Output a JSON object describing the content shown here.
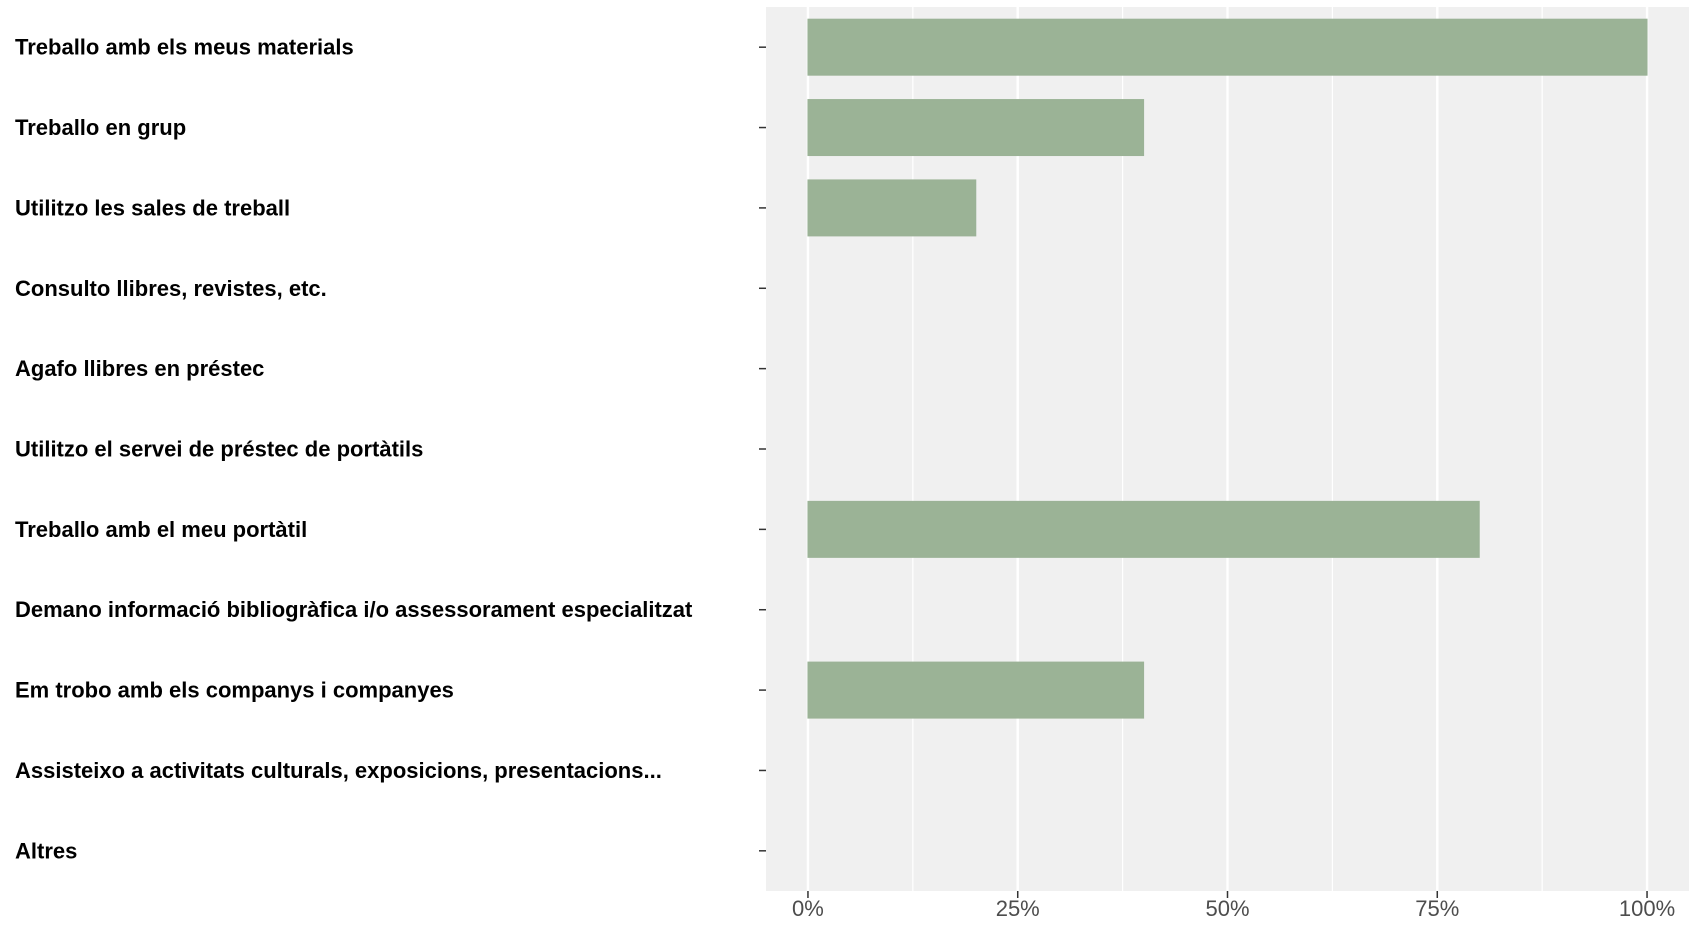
{
  "chart_data": {
    "type": "bar",
    "orientation": "horizontal",
    "categories": [
      "Treballo amb els meus materials",
      "Treballo en grup",
      "Utilitzo les sales de treball",
      "Consulto llibres, revistes, etc.",
      "Agafo llibres en préstec",
      "Utilitzo el servei de préstec de portàtils",
      "Treballo amb el meu portàtil",
      "Demano informació bibliogràfica i/o assessorament especialitzat",
      "Em trobo amb els companys i companyes",
      "Assisteixo a activitats culturals, exposicions, presentacions...",
      "Altres"
    ],
    "values": [
      100,
      40,
      20,
      0,
      0,
      0,
      80,
      0,
      40,
      0,
      0
    ],
    "xlim": [
      -5,
      105
    ],
    "x_ticks": [
      0,
      25,
      50,
      75,
      100
    ],
    "x_tick_labels": [
      "0%",
      "25%",
      "50%",
      "75%",
      "100%"
    ],
    "title": "",
    "xlabel": "",
    "ylabel": "",
    "grid": true,
    "legend": "none",
    "colors": {
      "bar": "#9bb396",
      "panel": "#f0f0f0",
      "gridline": "#ffffff",
      "tick_text": "#4d4d4d",
      "label_text": "#000000"
    }
  }
}
